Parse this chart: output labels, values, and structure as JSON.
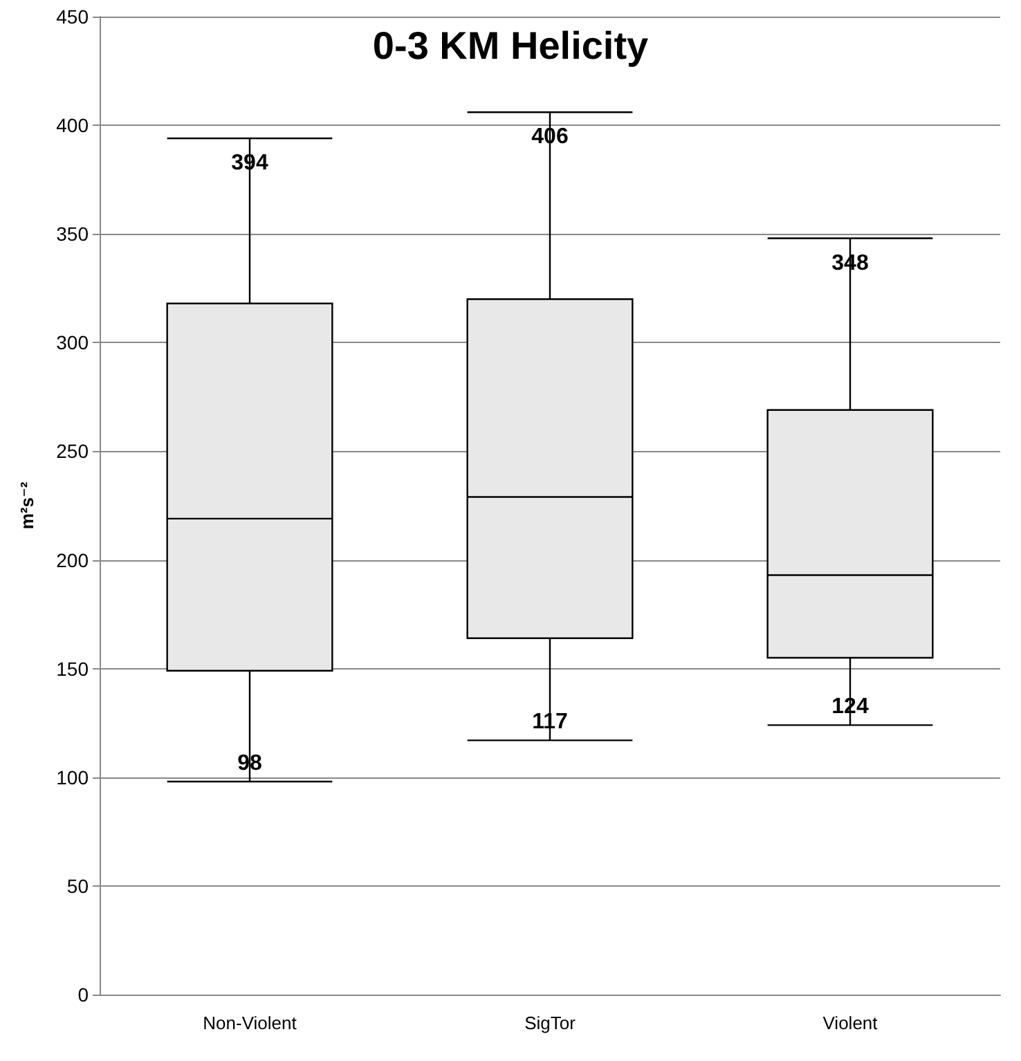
{
  "chart_data": {
    "type": "box",
    "title": "0-3 KM Helicity",
    "ylabel": "m²s⁻²",
    "categories": [
      "Non-Violent",
      "SigTor",
      "Violent"
    ],
    "boxes": [
      {
        "low": 98,
        "q1": 149,
        "median": 219,
        "q3": 318,
        "high": 394
      },
      {
        "low": 117,
        "q1": 164,
        "median": 229,
        "q3": 320,
        "high": 406
      },
      {
        "low": 124,
        "q1": 155,
        "median": 193,
        "q3": 269,
        "high": 348
      }
    ],
    "color": "#e8e8e8",
    "annotations": [
      {
        "text": "394",
        "x": "Non-Violent",
        "y": 394
      },
      {
        "text": "98",
        "x": "Non-Violent",
        "y": 98
      },
      {
        "text": "406",
        "x": "SigTor",
        "y": 406
      },
      {
        "text": "117",
        "x": "SigTor",
        "y": 117
      },
      {
        "text": "348",
        "x": "Violent",
        "y": 348
      },
      {
        "text": "124",
        "x": "Violent",
        "y": 124
      }
    ],
    "ylim": [
      0,
      450
    ],
    "yticks": [
      0,
      50,
      100,
      150,
      200,
      250,
      300,
      350,
      400,
      450
    ],
    "grid": "y",
    "data_labels": true
  }
}
